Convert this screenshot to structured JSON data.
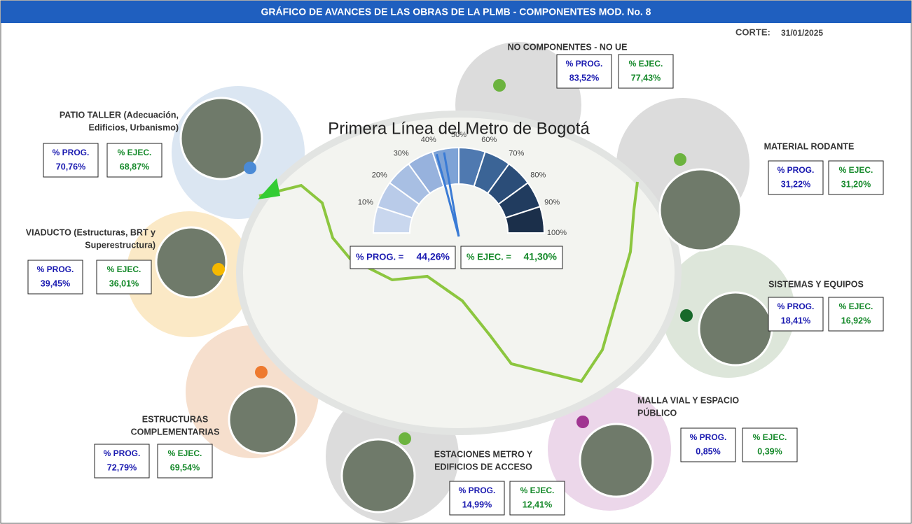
{
  "header": {
    "title": "GRÁFICO DE AVANCES DE LAS OBRAS DE LA PLMB - COMPONENTES MOD. No. 8",
    "cut_label": "CORTE:",
    "cut_date": "31/01/2025"
  },
  "map_title": "Primera Línea del Metro de Bogotá",
  "gauge": {
    "ticks": [
      {
        "value": 10,
        "label": "10%"
      },
      {
        "value": 20,
        "label": "20%"
      },
      {
        "value": 30,
        "label": "30%"
      },
      {
        "value": 40,
        "label": "40%"
      },
      {
        "value": 50,
        "label": "50%"
      },
      {
        "value": 60,
        "label": "60%"
      },
      {
        "value": 70,
        "label": "70%"
      },
      {
        "value": 80,
        "label": "80%"
      },
      {
        "value": 90,
        "label": "90%"
      },
      {
        "value": 100,
        "label": "100%"
      }
    ],
    "needle_names": [
      "% PROG. =",
      "% EJEC. ="
    ],
    "values": [
      44.26,
      41.3
    ],
    "value_labels": [
      "44,26%",
      "41,30%"
    ]
  },
  "components": [
    {
      "name": [
        "NO COMPONENTES - NO UE"
      ],
      "prog_label": "% PROG.",
      "prog": "83,52%",
      "ejec_label": "% EJEC.",
      "ejec": "77,43%"
    },
    {
      "name": [
        "PATIO TALLER  (Adecuación,",
        "Edificios, Urbanismo)"
      ],
      "prog_label": "% PROG.",
      "prog": "70,76%",
      "ejec_label": "% EJEC.",
      "ejec": "68,87%"
    },
    {
      "name": [
        "MATERIAL RODANTE"
      ],
      "prog_label": "% PROG.",
      "prog": "31,22%",
      "ejec_label": "% EJEC.",
      "ejec": "31,20%"
    },
    {
      "name": [
        "VIADUCTO (Estructuras, BRT y",
        "Superestructura)"
      ],
      "prog_label": "% PROG.",
      "prog": "39,45%",
      "ejec_label": "% EJEC.",
      "ejec": "36,01%"
    },
    {
      "name": [
        "SISTEMAS Y EQUIPOS"
      ],
      "prog_label": "% PROG.",
      "prog": "18,41%",
      "ejec_label": "% EJEC.",
      "ejec": "16,92%"
    },
    {
      "name": [
        "ESTRUCTURAS",
        "COMPLEMENTARIAS"
      ],
      "prog_label": "% PROG.",
      "prog": "72,79%",
      "ejec_label": "% EJEC.",
      "ejec": "69,54%"
    },
    {
      "name": [
        "ESTACIONES METRO Y",
        "EDIFICIOS DE ACCESO"
      ],
      "prog_label": "% PROG.",
      "prog": "14,99%",
      "ejec_label": "% EJEC.",
      "ejec": "12,41%"
    },
    {
      "name": [
        "MALLA VIAL Y ESPACIO",
        "PÚBLICO"
      ],
      "prog_label": "% PROG.",
      "prog": "0,85%",
      "ejec_label": "% EJEC.",
      "ejec": "0,39%"
    }
  ]
}
